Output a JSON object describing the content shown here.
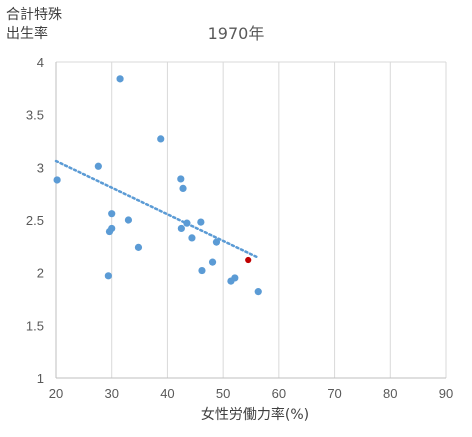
{
  "chart_data": {
    "type": "scatter",
    "title": "1970年",
    "ylabel_lines": [
      "合計特殊",
      "出生率"
    ],
    "xlabel": "女性労働力率(%)",
    "xlim": [
      20,
      90
    ],
    "ylim": [
      1,
      4
    ],
    "x_ticks": [
      20,
      30,
      40,
      50,
      60,
      70,
      80,
      90
    ],
    "y_ticks": [
      1,
      1.5,
      2,
      2.5,
      3,
      3.5,
      4
    ],
    "y_tick_labels": [
      "1",
      "1.5",
      "2",
      "2.5",
      "3",
      "3.5",
      "4"
    ],
    "grid": "vertical",
    "colors": {
      "points": "#5b9bd5",
      "highlight": "#c00000",
      "trendline": "#5b9bd5"
    },
    "points": [
      {
        "x": 31.5,
        "y": 3.84
      },
      {
        "x": 38.8,
        "y": 3.27
      },
      {
        "x": 27.6,
        "y": 3.01
      },
      {
        "x": 20.2,
        "y": 2.88
      },
      {
        "x": 42.4,
        "y": 2.89
      },
      {
        "x": 42.8,
        "y": 2.8
      },
      {
        "x": 30.0,
        "y": 2.56
      },
      {
        "x": 33.0,
        "y": 2.5
      },
      {
        "x": 30.0,
        "y": 2.42
      },
      {
        "x": 29.6,
        "y": 2.39
      },
      {
        "x": 43.5,
        "y": 2.47
      },
      {
        "x": 46.0,
        "y": 2.48
      },
      {
        "x": 42.5,
        "y": 2.42
      },
      {
        "x": 44.4,
        "y": 2.33
      },
      {
        "x": 48.8,
        "y": 2.29
      },
      {
        "x": 34.8,
        "y": 2.24
      },
      {
        "x": 48.1,
        "y": 2.1
      },
      {
        "x": 54.5,
        "y": 2.12,
        "highlight": true
      },
      {
        "x": 29.4,
        "y": 1.97
      },
      {
        "x": 46.2,
        "y": 2.02
      },
      {
        "x": 52.1,
        "y": 1.95
      },
      {
        "x": 51.4,
        "y": 1.92
      },
      {
        "x": 56.3,
        "y": 1.82
      }
    ],
    "trendline": {
      "x_start": 20,
      "y_start": 3.06,
      "x_end": 56,
      "y_end": 2.15,
      "style": "dotted"
    }
  }
}
